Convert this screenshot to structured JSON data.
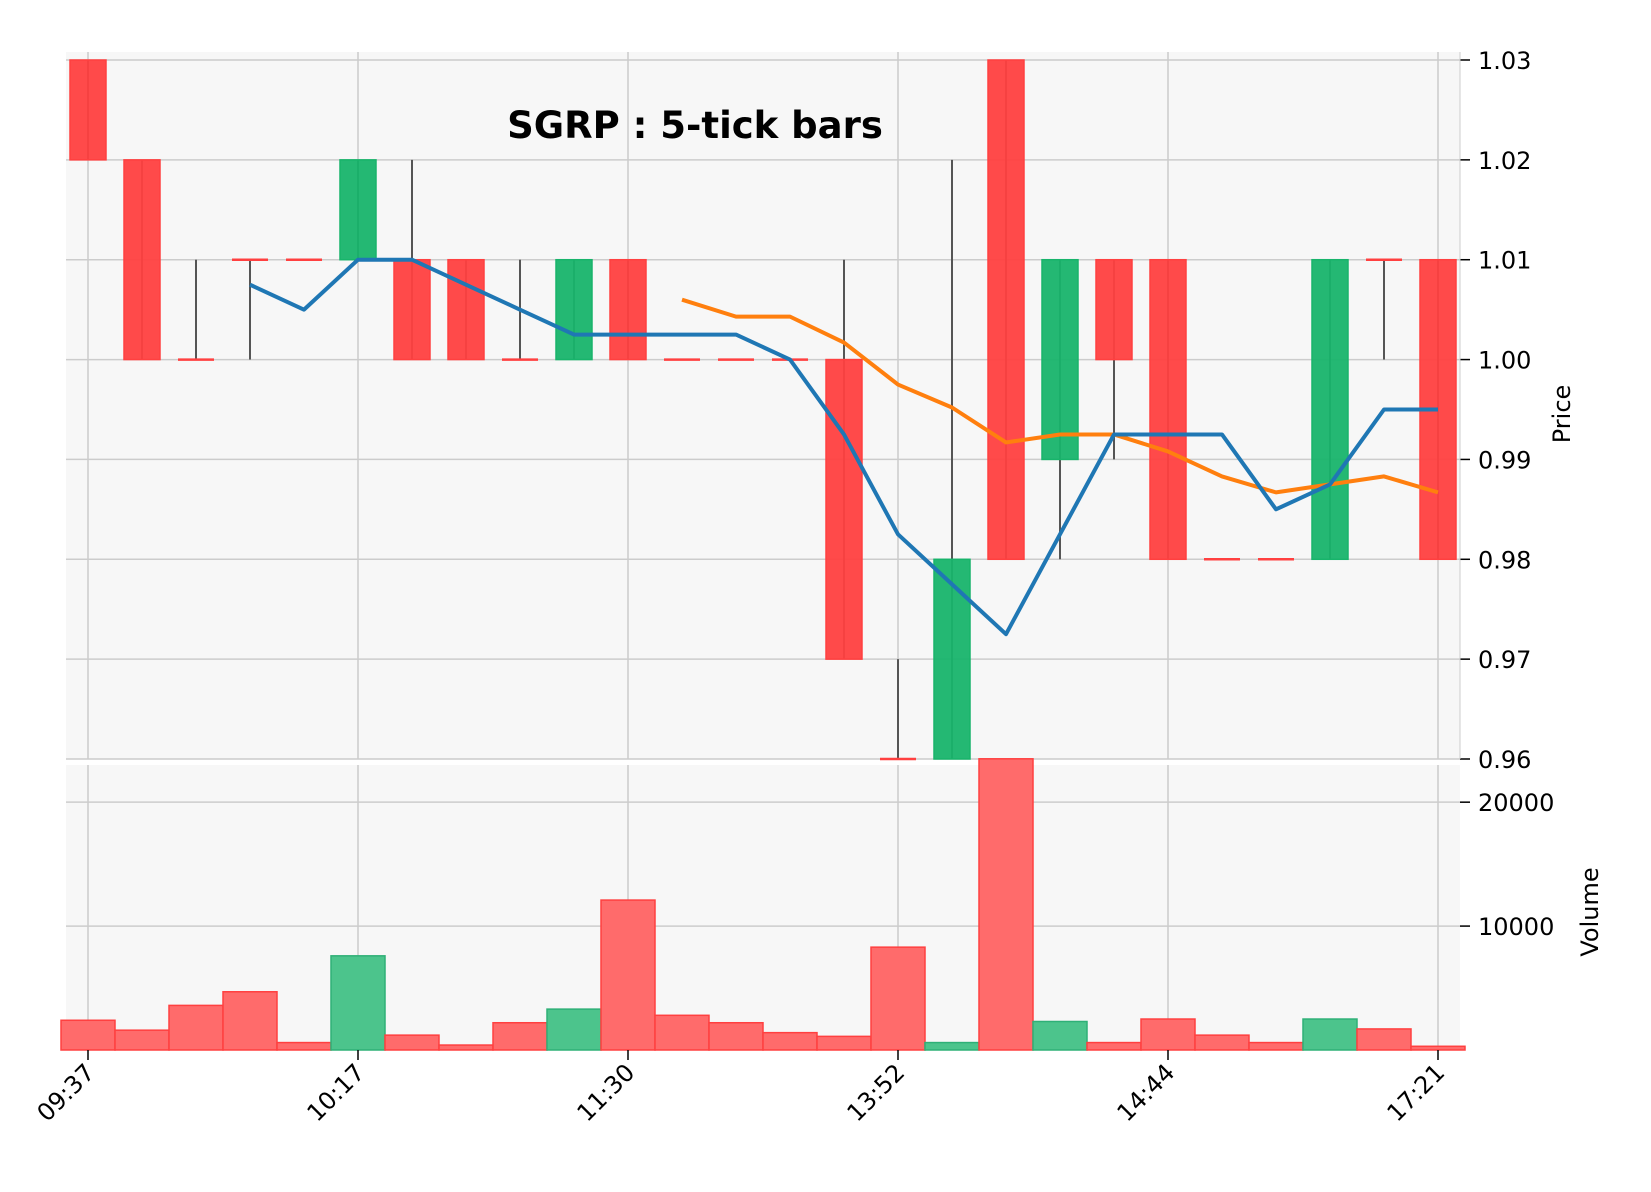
{
  "chart_data": {
    "type": "candlestick",
    "title": "SGRP : 5-tick bars",
    "ylabel_price": "Price",
    "ylabel_volume": "Volume",
    "price_ylim": [
      0.96,
      1.03
    ],
    "price_ticks": [
      "0.96",
      "0.97",
      "0.98",
      "0.99",
      "1.00",
      "1.01",
      "1.02",
      "1.03"
    ],
    "volume_ticks": [
      "10000",
      "20000"
    ],
    "volume_ylim": [
      0,
      23000
    ],
    "x_tick_labels": [
      "09:37",
      "10:17",
      "11:30",
      "13:52",
      "14:44",
      "17:21"
    ],
    "x_tick_indices": [
      0,
      5,
      10,
      15,
      20,
      25
    ],
    "grid": true,
    "colors": {
      "up": "#18b46b",
      "down": "#ff4040",
      "wick": "#555555",
      "ma_blue": "#1f77b4",
      "ma_orange": "#ff7f0e",
      "panel_bg": "#f7f7f7",
      "grid": "#cccccc"
    },
    "bars": [
      {
        "o": 1.03,
        "h": 1.03,
        "l": 1.02,
        "c": 1.02,
        "v": 2400
      },
      {
        "o": 1.02,
        "h": 1.02,
        "l": 1.0,
        "c": 1.0,
        "v": 1600
      },
      {
        "o": 1.0,
        "h": 1.01,
        "l": 1.0,
        "c": 1.0,
        "v": 3600
      },
      {
        "o": 1.01,
        "h": 1.01,
        "l": 1.0,
        "c": 1.01,
        "v": 4700
      },
      {
        "o": 1.01,
        "h": 1.01,
        "l": 1.01,
        "c": 1.01,
        "v": 600
      },
      {
        "o": 1.01,
        "h": 1.02,
        "l": 1.01,
        "c": 1.02,
        "v": 7600
      },
      {
        "o": 1.01,
        "h": 1.02,
        "l": 1.0,
        "c": 1.0,
        "v": 1200
      },
      {
        "o": 1.01,
        "h": 1.01,
        "l": 1.0,
        "c": 1.0,
        "v": 400
      },
      {
        "o": 1.0,
        "h": 1.01,
        "l": 1.0,
        "c": 1.0,
        "v": 2200
      },
      {
        "o": 1.0,
        "h": 1.01,
        "l": 1.0,
        "c": 1.01,
        "v": 3300
      },
      {
        "o": 1.01,
        "h": 1.01,
        "l": 1.0,
        "c": 1.0,
        "v": 12100
      },
      {
        "o": 1.0,
        "h": 1.0,
        "l": 1.0,
        "c": 1.0,
        "v": 2800
      },
      {
        "o": 1.0,
        "h": 1.0,
        "l": 1.0,
        "c": 1.0,
        "v": 2200
      },
      {
        "o": 1.0,
        "h": 1.0,
        "l": 1.0,
        "c": 1.0,
        "v": 1400
      },
      {
        "o": 1.0,
        "h": 1.01,
        "l": 0.97,
        "c": 0.97,
        "v": 1100
      },
      {
        "o": 0.96,
        "h": 0.97,
        "l": 0.96,
        "c": 0.96,
        "v": 8300
      },
      {
        "o": 0.96,
        "h": 1.02,
        "l": 0.96,
        "c": 0.98,
        "v": 600
      },
      {
        "o": 1.03,
        "h": 1.03,
        "l": 0.98,
        "c": 0.98,
        "v": 23500
      },
      {
        "o": 0.99,
        "h": 1.01,
        "l": 0.98,
        "c": 1.01,
        "v": 2300
      },
      {
        "o": 1.01,
        "h": 1.01,
        "l": 0.99,
        "c": 1.0,
        "v": 600
      },
      {
        "o": 1.01,
        "h": 1.01,
        "l": 0.98,
        "c": 0.98,
        "v": 2500
      },
      {
        "o": 0.98,
        "h": 0.98,
        "l": 0.98,
        "c": 0.98,
        "v": 1200
      },
      {
        "o": 0.98,
        "h": 0.98,
        "l": 0.98,
        "c": 0.98,
        "v": 600
      },
      {
        "o": 0.98,
        "h": 1.01,
        "l": 0.98,
        "c": 1.01,
        "v": 2500
      },
      {
        "o": 1.01,
        "h": 1.01,
        "l": 1.0,
        "c": 1.01,
        "v": 1700
      },
      {
        "o": 1.01,
        "h": 1.01,
        "l": 0.98,
        "c": 0.98,
        "v": 300
      }
    ],
    "ma_blue": [
      null,
      null,
      null,
      1.0075,
      1.005,
      1.01,
      1.01,
      1.0075,
      1.005,
      1.0025,
      1.0025,
      1.0025,
      1.0025,
      1.0,
      0.9925,
      0.9825,
      0.9775,
      0.9725,
      0.9825,
      0.9925,
      0.9925,
      0.9925,
      0.985,
      0.9875,
      0.995,
      0.995
    ],
    "ma_orange": [
      null,
      null,
      null,
      null,
      null,
      null,
      null,
      null,
      null,
      null,
      null,
      1.006,
      1.0043,
      1.0043,
      1.0017,
      0.9975,
      0.9952,
      0.9917,
      0.9925,
      0.9925,
      0.9908,
      0.9883,
      0.9867,
      0.9875,
      0.9883,
      0.9867
    ]
  }
}
